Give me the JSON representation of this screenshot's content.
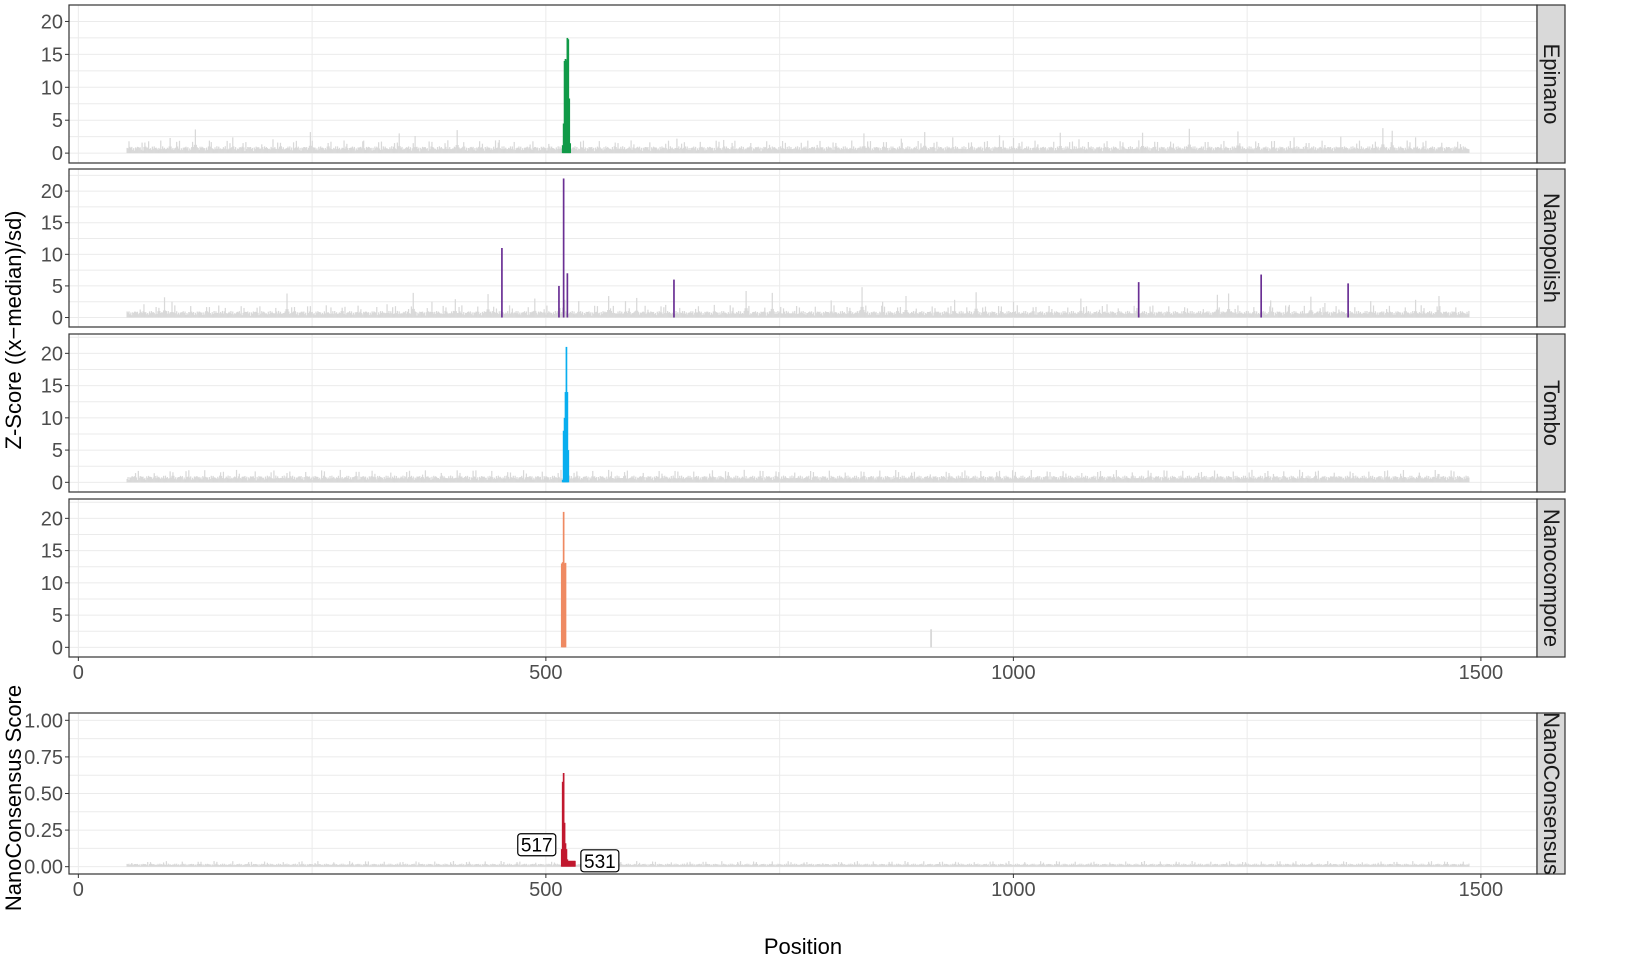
{
  "chart_data": {
    "type": "bar",
    "xlabel": "Position",
    "ylabel_top": "Z-Score ((x−median)/sd)",
    "ylabel_bottom": "NanoConsensus Score",
    "xlim": [
      -10,
      1560
    ],
    "xticks": [
      0,
      500,
      1000,
      1500
    ],
    "xtick_labels": [
      "0",
      "500",
      "1000",
      "1500"
    ],
    "grid": true,
    "background_color": "#d9d9d9",
    "colors": {
      "Epinano": "#119a48",
      "Nanopolish": "#6a2f94",
      "Tombo": "#09aeef",
      "Nanocompore": "#ef8a62",
      "NanoConsensus": "#c1182f"
    },
    "zscore_panels": [
      {
        "name": "Epinano",
        "ylim": [
          -1.5,
          22.5
        ],
        "yticks": [
          0,
          5,
          10,
          15,
          20
        ],
        "ytick_labels": [
          "0",
          "5",
          "10",
          "15",
          "20"
        ],
        "background_range": [
          52,
          1487
        ],
        "background_peaks": [
          [
            75,
            1.8
          ],
          [
            98,
            2.3
          ],
          [
            125,
            3.6
          ],
          [
            140,
            1.9
          ],
          [
            165,
            2.4
          ],
          [
            208,
            2.1
          ],
          [
            248,
            3.2
          ],
          [
            305,
            1.9
          ],
          [
            343,
            3.0
          ],
          [
            360,
            2.6
          ],
          [
            405,
            3.5
          ],
          [
            450,
            2.0
          ],
          [
            640,
            2.2
          ],
          [
            690,
            2.0
          ],
          [
            780,
            1.9
          ],
          [
            840,
            3.0
          ],
          [
            880,
            2.2
          ],
          [
            905,
            3.2
          ],
          [
            935,
            2.4
          ],
          [
            985,
            2.7
          ],
          [
            1000,
            2.3
          ],
          [
            1050,
            3.1
          ],
          [
            1070,
            2.1
          ],
          [
            1138,
            3.1
          ],
          [
            1188,
            3.7
          ],
          [
            1240,
            3.3
          ],
          [
            1300,
            2.4
          ],
          [
            1350,
            2.5
          ],
          [
            1395,
            3.8
          ],
          [
            1405,
            3.4
          ],
          [
            1430,
            2.4
          ]
        ],
        "highlight": [
          [
            518,
            1.2
          ],
          [
            519,
            4.5
          ],
          [
            520,
            14.0
          ],
          [
            521,
            14.3
          ],
          [
            522,
            14.1
          ],
          [
            523,
            17.5
          ],
          [
            524,
            17.3
          ],
          [
            525,
            8.3
          ],
          [
            526,
            1.5
          ]
        ]
      },
      {
        "name": "Nanopolish",
        "ylim": [
          -1.5,
          23.5
        ],
        "yticks": [
          0,
          5,
          10,
          15,
          20
        ],
        "ytick_labels": [
          "0",
          "5",
          "10",
          "15",
          "20"
        ],
        "background_range": [
          52,
          1487
        ],
        "background_peaks": [
          [
            70,
            2.1
          ],
          [
            92,
            3.2
          ],
          [
            100,
            2.5
          ],
          [
            150,
            1.9
          ],
          [
            223,
            3.8
          ],
          [
            270,
            1.6
          ],
          [
            330,
            2.1
          ],
          [
            358,
            3.9
          ],
          [
            378,
            2.5
          ],
          [
            403,
            2.9
          ],
          [
            438,
            3.7
          ],
          [
            488,
            3.0
          ],
          [
            520,
            2.8
          ],
          [
            535,
            2.6
          ],
          [
            567,
            3.4
          ],
          [
            585,
            2.6
          ],
          [
            597,
            3.1
          ],
          [
            628,
            2.0
          ],
          [
            680,
            2.0
          ],
          [
            714,
            4.2
          ],
          [
            742,
            3.9
          ],
          [
            805,
            2.7
          ],
          [
            838,
            4.8
          ],
          [
            860,
            2.5
          ],
          [
            885,
            3.4
          ],
          [
            937,
            2.8
          ],
          [
            960,
            4.0
          ],
          [
            1000,
            2.5
          ],
          [
            1072,
            3.0
          ],
          [
            1100,
            2.1
          ],
          [
            1218,
            3.6
          ],
          [
            1230,
            3.8
          ],
          [
            1275,
            2.7
          ],
          [
            1295,
            2.0
          ],
          [
            1318,
            3.3
          ],
          [
            1333,
            2.3
          ],
          [
            1382,
            2.6
          ],
          [
            1430,
            2.8
          ],
          [
            1455,
            3.4
          ]
        ],
        "highlight": [
          [
            453,
            11.0
          ],
          [
            514,
            5.0
          ],
          [
            519,
            22.0
          ],
          [
            523,
            7.0
          ],
          [
            637,
            6.0
          ],
          [
            1134,
            5.6
          ],
          [
            1265,
            6.8
          ],
          [
            1358,
            5.4
          ]
        ]
      },
      {
        "name": "Tombo",
        "ylim": [
          -1.5,
          23.0
        ],
        "yticks": [
          0,
          5,
          10,
          15,
          20
        ],
        "ytick_labels": [
          "0",
          "5",
          "10",
          "15",
          "20"
        ],
        "background_range": [
          52,
          1487
        ],
        "background_peaks": [
          [
            110,
            0.8
          ],
          [
            130,
            0.6
          ],
          [
            238,
            0.7
          ],
          [
            315,
            0.9
          ],
          [
            350,
            0.8
          ],
          [
            388,
            1.1
          ],
          [
            410,
            0.9
          ],
          [
            435,
            0.7
          ],
          [
            545,
            0.6
          ],
          [
            655,
            0.7
          ],
          [
            710,
            0.7
          ],
          [
            880,
            0.6
          ],
          [
            945,
            0.6
          ],
          [
            1020,
            0.6
          ],
          [
            1190,
            0.7
          ],
          [
            1250,
            0.6
          ],
          [
            1278,
            1.3
          ],
          [
            1345,
            0.9
          ],
          [
            1455,
            1.3
          ]
        ],
        "highlight": [
          [
            518,
            0.4
          ],
          [
            519,
            8.0
          ],
          [
            520,
            10.0
          ],
          [
            521,
            14.0
          ],
          [
            522,
            21.0
          ],
          [
            523,
            14.0
          ],
          [
            524,
            5.0
          ]
        ]
      },
      {
        "name": "Nanocompore",
        "ylim": [
          -1.5,
          23.0
        ],
        "yticks": [
          0,
          5,
          10,
          15,
          20
        ],
        "ytick_labels": [
          "0",
          "5",
          "10",
          "15",
          "20"
        ],
        "background_range": null,
        "background_peaks": [
          [
            912,
            2.8
          ]
        ],
        "highlight": [
          [
            517,
            13.0
          ],
          [
            518,
            13.2
          ],
          [
            519,
            21.0
          ],
          [
            520,
            13.0
          ],
          [
            521,
            13.1
          ]
        ]
      }
    ],
    "consensus_panel": {
      "name": "NanoConsensus",
      "ylim": [
        -0.05,
        1.05
      ],
      "yticks": [
        0,
        0.25,
        0.5,
        0.75,
        1.0
      ],
      "ytick_labels": [
        "0.00",
        "0.25",
        "0.50",
        "0.75",
        "1.00"
      ],
      "background_range": [
        52,
        1487
      ],
      "background_peaks": [
        [
          93,
          0.15
        ],
        [
          223,
          0.13
        ],
        [
          240,
          0.06
        ],
        [
          330,
          0.06
        ],
        [
          405,
          0.06
        ],
        [
          700,
          0.11
        ],
        [
          1000,
          0.09
        ],
        [
          1128,
          0.12
        ],
        [
          1265,
          0.06
        ],
        [
          1350,
          0.06
        ],
        [
          1450,
          0.07
        ]
      ],
      "highlight": [
        [
          517,
          0.12
        ],
        [
          518,
          0.58
        ],
        [
          519,
          0.64
        ],
        [
          520,
          0.3
        ],
        [
          521,
          0.16
        ],
        [
          522,
          0.12
        ],
        [
          523,
          0.05
        ],
        [
          524,
          0.04
        ],
        [
          525,
          0.04
        ],
        [
          526,
          0.04
        ],
        [
          527,
          0.04
        ],
        [
          528,
          0.04
        ],
        [
          529,
          0.04
        ],
        [
          530,
          0.04
        ],
        [
          531,
          0.04
        ]
      ],
      "annotations": [
        {
          "label": "517",
          "x": 517,
          "y": 0.15,
          "anchor": "end"
        },
        {
          "label": "531",
          "x": 531,
          "y": 0.04,
          "anchor": "start"
        }
      ]
    }
  }
}
